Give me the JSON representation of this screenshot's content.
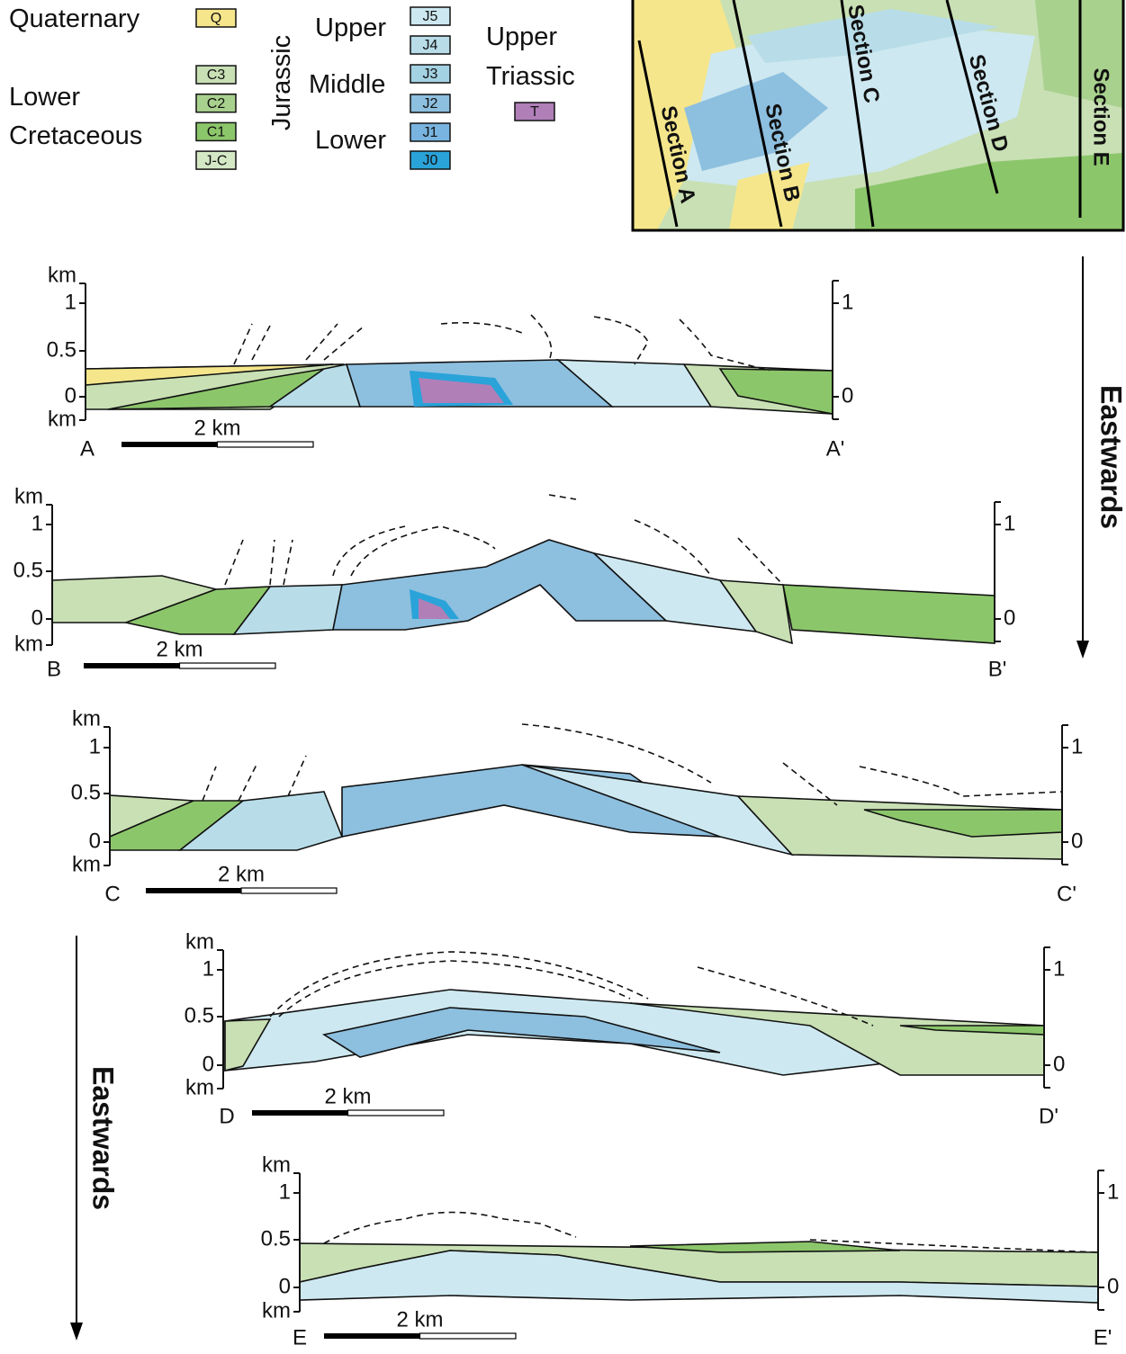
{
  "legend": {
    "quaternary": {
      "label": "Quaternary",
      "units": [
        "Q"
      ]
    },
    "lower_cretaceous": {
      "label": [
        "Lower",
        "Cretaceous"
      ],
      "units": [
        "C3",
        "C2",
        "C1",
        "J-C"
      ]
    },
    "jurassic": {
      "label": "Jurassic",
      "upper": {
        "label": "Upper",
        "units": [
          "J5",
          "J4"
        ]
      },
      "middle": {
        "label": "Middle",
        "units": [
          "J3",
          "J2"
        ]
      },
      "lower": {
        "label": "Lower",
        "units": [
          "J1",
          "J0"
        ]
      }
    },
    "upper_triassic": {
      "label": [
        "Upper",
        "Triassic"
      ],
      "units": [
        "T"
      ]
    }
  },
  "map": {
    "sections": [
      "Section A",
      "Section B",
      "Section C",
      "Section D",
      "Section E"
    ]
  },
  "arrows": [
    "Eastwards",
    "Eastwards"
  ],
  "sections": [
    {
      "start": "A",
      "end": "A'",
      "scale": "2 km",
      "left_axis": [
        "km",
        "1",
        "0.5",
        "0",
        "km"
      ],
      "right_axis": [
        "1",
        "0"
      ]
    },
    {
      "start": "B",
      "end": "B'",
      "scale": "2 km",
      "left_axis": [
        "km",
        "1",
        "0.5",
        "0",
        "km"
      ],
      "right_axis": [
        "1",
        "0"
      ]
    },
    {
      "start": "C",
      "end": "C'",
      "scale": "2 km",
      "left_axis": [
        "km",
        "1",
        "0.5",
        "0",
        "km"
      ],
      "right_axis": [
        "1",
        "0"
      ]
    },
    {
      "start": "D",
      "end": "D'",
      "scale": "2 km",
      "left_axis": [
        "km",
        "1",
        "0.5",
        "0",
        "km"
      ],
      "right_axis": [
        "1",
        "0"
      ]
    },
    {
      "start": "E",
      "end": "E'",
      "scale": "2 km",
      "left_axis": [
        "km",
        "1",
        "0.5",
        "0",
        "km"
      ],
      "right_axis": [
        "1",
        "0"
      ]
    }
  ]
}
